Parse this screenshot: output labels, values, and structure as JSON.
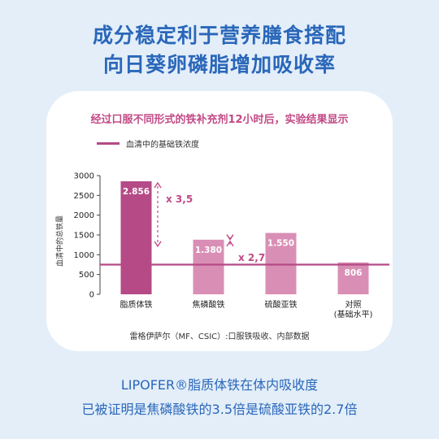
{
  "headline": {
    "line1": "成分稳定利于营养膳食搭配",
    "line2": "向日葵卵磷脂增加吸收率"
  },
  "chart_data": {
    "type": "bar",
    "title": "经过口服不同形式的铁补充剂12小时后，实验结果显示",
    "ylabel": "血清中的总铁量",
    "xlabel": "",
    "ylim": [
      0,
      3000
    ],
    "yticks": [
      0,
      500,
      1000,
      1500,
      2000,
      2500,
      3000
    ],
    "categories": [
      "脂质体铁",
      "焦磷酸铁",
      "硫酸亚铁",
      "对照\n(基础水平)"
    ],
    "values": [
      2856,
      1380,
      1550,
      806
    ],
    "value_labels": [
      "2.856",
      "1.380",
      "1.550",
      "806"
    ],
    "reference_line": {
      "name": "血清中的基础铁浓度",
      "value": 750
    },
    "annotations": [
      {
        "text": "x 3,5",
        "from_category": 0,
        "to_category": 1
      },
      {
        "text": "x 2,7",
        "from_category": 1,
        "to_category": 2
      }
    ],
    "grid": false,
    "legend": "top-left",
    "colors": {
      "bar_dark": "#b54a86",
      "bar_light": "#d98fb5",
      "line": "#b54a86",
      "annotation": "#c24a86"
    }
  },
  "source": "雷格伊萨尔（MF、CSIC）:口服铁吸收、内部数据",
  "footer": {
    "line1": "LIPOFER®脂质体铁在体内吸收度",
    "line2": "已被证明是焦磷酸铁的3.5倍是硫酸亚铁的2.7倍"
  }
}
